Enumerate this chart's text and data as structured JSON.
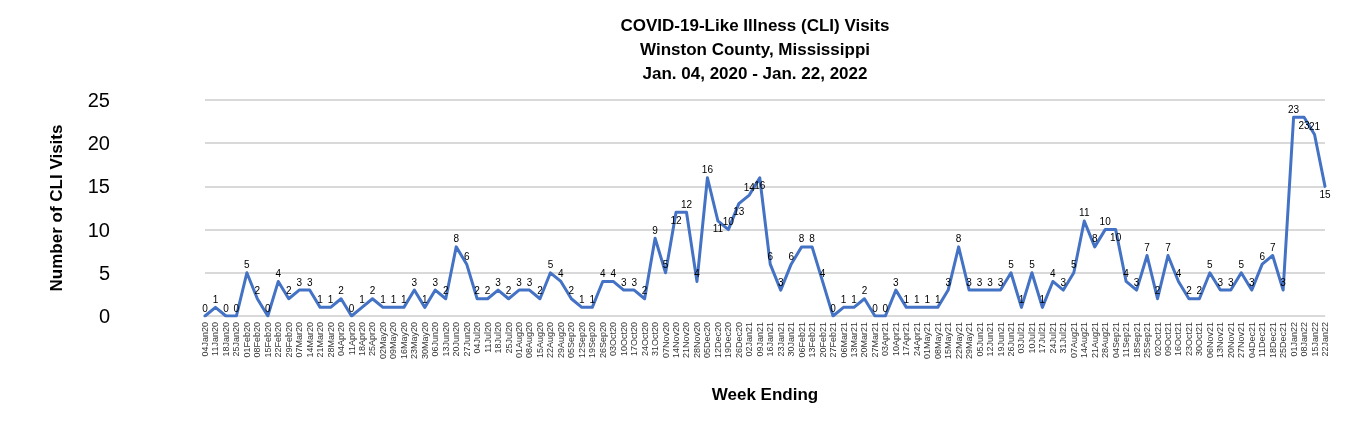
{
  "chart_data": {
    "type": "line",
    "title": "COVID-19-Like Illness (CLI) Visits\nWinston County, Mississippi\nJan. 04, 2020 - Jan. 22, 2022",
    "xlabel": "Week Ending",
    "ylabel": "Number of CLI Visits",
    "categories": [
      "04Jan20",
      "11Jan20",
      "18Jan20",
      "25Jan20",
      "01Feb20",
      "08Feb20",
      "15Feb20",
      "22Feb20",
      "29Feb20",
      "07Mar20",
      "14Mar20",
      "21Mar20",
      "28Mar20",
      "04Apr20",
      "11Apr20",
      "18Apr20",
      "25Apr20",
      "02May20",
      "09May20",
      "16May20",
      "23May20",
      "30May20",
      "06Jun20",
      "13Jun20",
      "20Jun20",
      "27Jun20",
      "04Jul20",
      "11Jul20",
      "18Jul20",
      "25Jul20",
      "01Aug20",
      "08Aug20",
      "15Aug20",
      "22Aug20",
      "29Aug20",
      "05Sep20",
      "12Sep20",
      "19Sep20",
      "26Sep20",
      "03Oct20",
      "10Oct20",
      "17Oct20",
      "24Oct20",
      "31Oct20",
      "07Nov20",
      "14Nov20",
      "21Nov20",
      "28Nov20",
      "05Dec20",
      "12Dec20",
      "19Dec20",
      "26Dec20",
      "02Jan21",
      "09Jan21",
      "16Jan21",
      "23Jan21",
      "30Jan21",
      "06Feb21",
      "13Feb21",
      "20Feb21",
      "27Feb21",
      "06Mar21",
      "13Mar21",
      "20Mar21",
      "27Mar21",
      "03Apr21",
      "10Apr21",
      "17Apr21",
      "24Apr21",
      "01May21",
      "08May21",
      "15May21",
      "22May21",
      "29May21",
      "05Jun21",
      "12Jun21",
      "19Jun21",
      "26Jun21",
      "03Jul21",
      "10Jul21",
      "17Jul21",
      "24Jul21",
      "31Jul21",
      "07Aug21",
      "14Aug21",
      "21Aug21",
      "28Aug21",
      "04Sep21",
      "11Sep21",
      "18Sep21",
      "25Sep21",
      "02Oct21",
      "09Oct21",
      "16Oct21",
      "23Oct21",
      "30Oct21",
      "06Nov21",
      "13Nov21",
      "20Nov21",
      "27Nov21",
      "04Dec21",
      "11Dec21",
      "18Dec21",
      "25Dec21",
      "01Jan22",
      "08Jan22",
      "15Jan22",
      "22Jan22"
    ],
    "series": [
      {
        "color": "#4472c4",
        "values": [
          0,
          1,
          0,
          0,
          5,
          2,
          0,
          4,
          2,
          3,
          3,
          1,
          1,
          2,
          0,
          1,
          2,
          1,
          1,
          1,
          3,
          1,
          3,
          2,
          8,
          6,
          2,
          2,
          3,
          2,
          3,
          3,
          2,
          5,
          4,
          2,
          1,
          1,
          4,
          4,
          3,
          3,
          2,
          9,
          5,
          12,
          12,
          4,
          16,
          11,
          10,
          13,
          14,
          16,
          6,
          3,
          6,
          8,
          8,
          4,
          0,
          1,
          1,
          2,
          0,
          0,
          3,
          1,
          1,
          1,
          1,
          3,
          8,
          3,
          3,
          3,
          3,
          5,
          1,
          5,
          1,
          4,
          3,
          5,
          11,
          8,
          10,
          10,
          4,
          3,
          7,
          2,
          7,
          4,
          2,
          2,
          5,
          3,
          3,
          5,
          3,
          6,
          7,
          3,
          23,
          23,
          21,
          15
        ]
      }
    ],
    "ylim": [
      0,
      25
    ],
    "yticks": [
      0,
      5,
      10,
      15,
      20,
      25
    ],
    "grid": true,
    "data_labels": true
  }
}
